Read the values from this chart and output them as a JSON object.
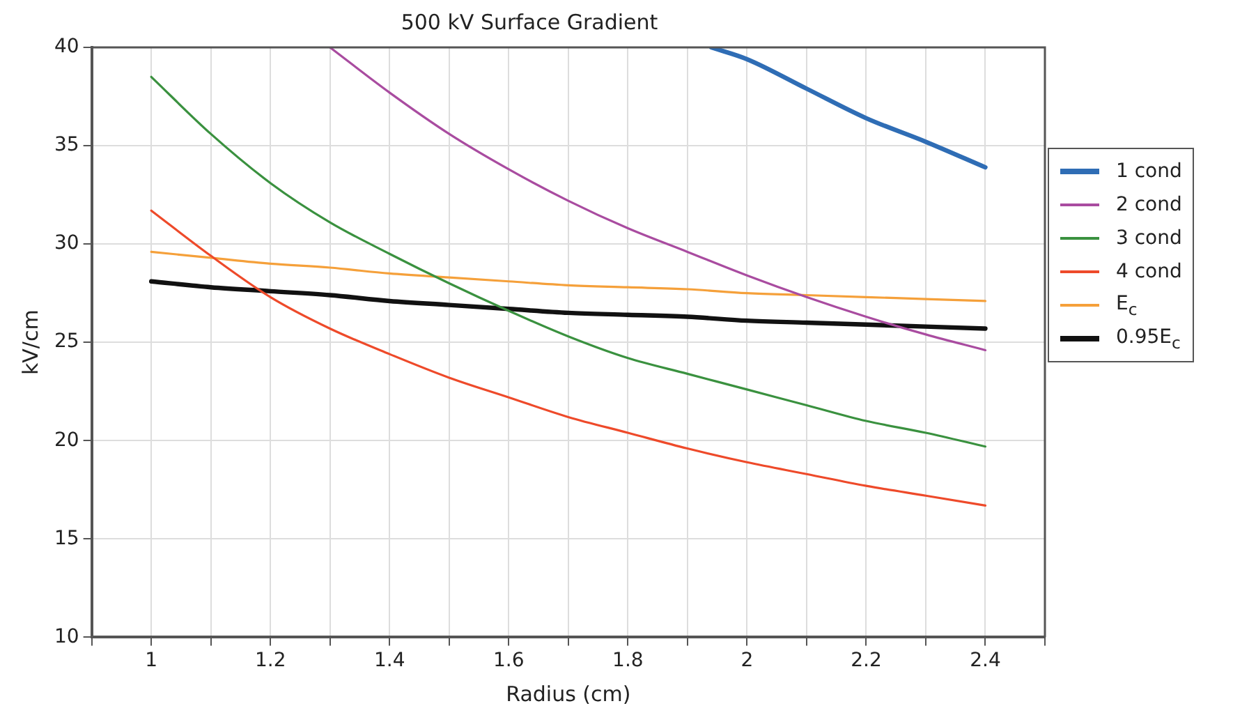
{
  "chart_data": {
    "type": "line",
    "title": "500 kV Surface Gradient",
    "xlabel": "Radius (cm)",
    "ylabel": "kV/cm",
    "x": [
      1,
      1.1,
      1.2,
      1.3,
      1.4,
      1.5,
      1.6,
      1.7,
      1.8,
      1.9,
      2,
      2.1,
      2.2,
      2.3,
      2.4
    ],
    "series": [
      {
        "name": "1 cond",
        "color": "#2f6db5",
        "x": [
          1.94,
          2,
          2.1,
          2.2,
          2.3,
          2.4
        ],
        "values": [
          40,
          39.4,
          37.9,
          36.4,
          35.2,
          33.9
        ]
      },
      {
        "name": "2 cond",
        "color": "#a94ca0",
        "x": [
          1.3,
          1.4,
          1.5,
          1.6,
          1.7,
          1.8,
          1.9,
          2,
          2.1,
          2.2,
          2.3,
          2.4
        ],
        "values": [
          40,
          37.7,
          35.6,
          33.8,
          32.2,
          30.8,
          29.6,
          28.4,
          27.3,
          26.3,
          25.4,
          24.6
        ]
      },
      {
        "name": "3 cond",
        "color": "#3a913f",
        "values": [
          38.5,
          35.6,
          33.1,
          31.1,
          29.5,
          28,
          26.6,
          25.3,
          24.2,
          23.4,
          22.6,
          21.8,
          21,
          20.4,
          19.7
        ]
      },
      {
        "name": "4 cond",
        "color": "#ee4a2a",
        "values": [
          31.7,
          29.4,
          27.3,
          25.7,
          24.4,
          23.2,
          22.2,
          21.2,
          20.4,
          19.6,
          18.9,
          18.3,
          17.7,
          17.2,
          16.7
        ]
      },
      {
        "name": "E$_{c}$",
        "color": "#f5a03a",
        "values": [
          29.6,
          29.3,
          29,
          28.8,
          28.5,
          28.3,
          28.1,
          27.9,
          27.8,
          27.7,
          27.5,
          27.4,
          27.3,
          27.2,
          27.1
        ]
      },
      {
        "name": "0.95E$_{c}$",
        "color": "#111111",
        "values": [
          28.1,
          27.8,
          27.6,
          27.4,
          27.1,
          26.9,
          26.7,
          26.5,
          26.4,
          26.3,
          26.1,
          26,
          25.9,
          25.8,
          25.7
        ]
      }
    ],
    "xlim": [
      0.9,
      2.5
    ],
    "xticks": [
      {
        "value": 0.9,
        "label": null
      },
      1,
      {
        "value": 1.1,
        "label": null
      },
      1.2,
      {
        "value": 1.3,
        "label": null
      },
      1.4,
      {
        "value": 1.5,
        "label": null
      },
      1.6,
      {
        "value": 1.7,
        "label": null
      },
      1.8,
      {
        "value": 1.9,
        "label": null
      },
      2,
      {
        "value": 2.1,
        "label": null
      },
      2.2,
      {
        "value": 2.3,
        "label": null
      },
      2.4,
      {
        "value": 2.5,
        "label": null
      }
    ],
    "ylim": [
      10,
      40
    ],
    "yticks": [
      10,
      15,
      20,
      25,
      30,
      35,
      40
    ],
    "grid": true,
    "legend": "right",
    "marker": "none",
    "line_style": "solid"
  }
}
